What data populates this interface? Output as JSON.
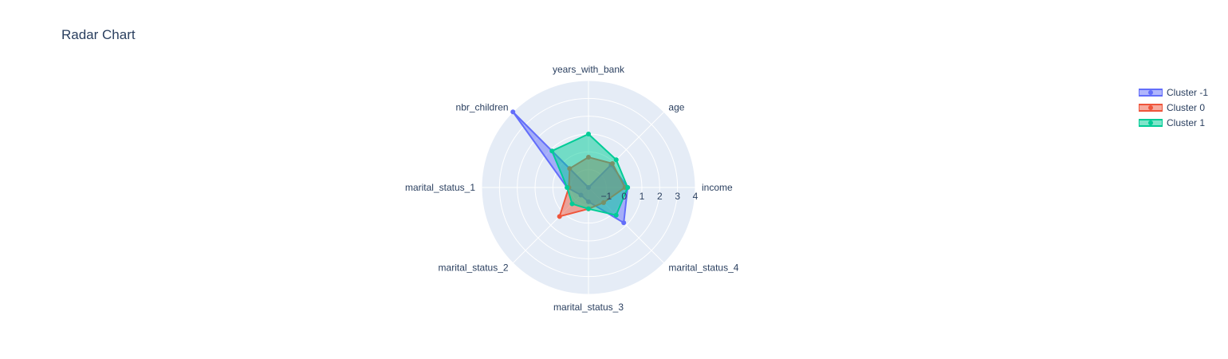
{
  "chart_data": {
    "type": "radar",
    "title": "Radar Chart",
    "axes": [
      "income",
      "age",
      "years_with_bank",
      "nbr_children",
      "marital_status_1",
      "marital_status_2",
      "marital_status_3",
      "marital_status_4"
    ],
    "radial_range": [
      -2,
      4
    ],
    "radial_ticks": [
      -1,
      0,
      1,
      2,
      3,
      4
    ],
    "series": [
      {
        "name": "Cluster -1",
        "color": "#636efa",
        "values": [
          0.2,
          -0.2,
          -2,
          4,
          -0.8,
          -1.4,
          -1.2,
          0.8
        ]
      },
      {
        "name": "Cluster 0",
        "color": "#ef553b",
        "values": [
          0.05,
          -0.1,
          -0.3,
          -0.5,
          -0.9,
          0.3,
          -0.8,
          -0.8
        ]
      },
      {
        "name": "Cluster 1",
        "color": "#00cc96",
        "values": [
          0.2,
          0.2,
          1.0,
          0.9,
          -0.8,
          -0.7,
          -0.8,
          0.2
        ]
      }
    ],
    "legend_position": "top-right",
    "grid": true
  }
}
